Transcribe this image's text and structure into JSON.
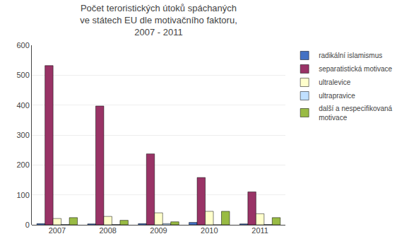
{
  "chart_data": {
    "type": "bar",
    "title": "Počet teroristických útoků spáchaných\nve státech EU dle motivačního faktoru,\n2007 - 2011",
    "categories": [
      "2007",
      "2008",
      "2009",
      "2010",
      "2011"
    ],
    "series": [
      {
        "name": "radikální islamismus",
        "color": "#4472C4",
        "values": [
          4,
          3,
          4,
          8,
          3
        ]
      },
      {
        "name": "separatistická motivace",
        "color": "#993366",
        "values": [
          532,
          397,
          237,
          158,
          110
        ]
      },
      {
        "name": "ultralevice",
        "color": "#FFFFCC",
        "values": [
          21,
          28,
          40,
          45,
          37
        ]
      },
      {
        "name": "ultrapravice",
        "color": "#C0E0FF",
        "values": [
          1,
          1,
          4,
          0,
          1
        ]
      },
      {
        "name": "další a nespecifikovaná\nmotivace",
        "color": "#99BB44",
        "values": [
          24,
          15,
          10,
          45,
          24
        ]
      }
    ],
    "ylim": [
      0,
      600
    ],
    "yticks": [
      0,
      100,
      200,
      300,
      400,
      500,
      600
    ],
    "grid": true,
    "legend": "right"
  }
}
